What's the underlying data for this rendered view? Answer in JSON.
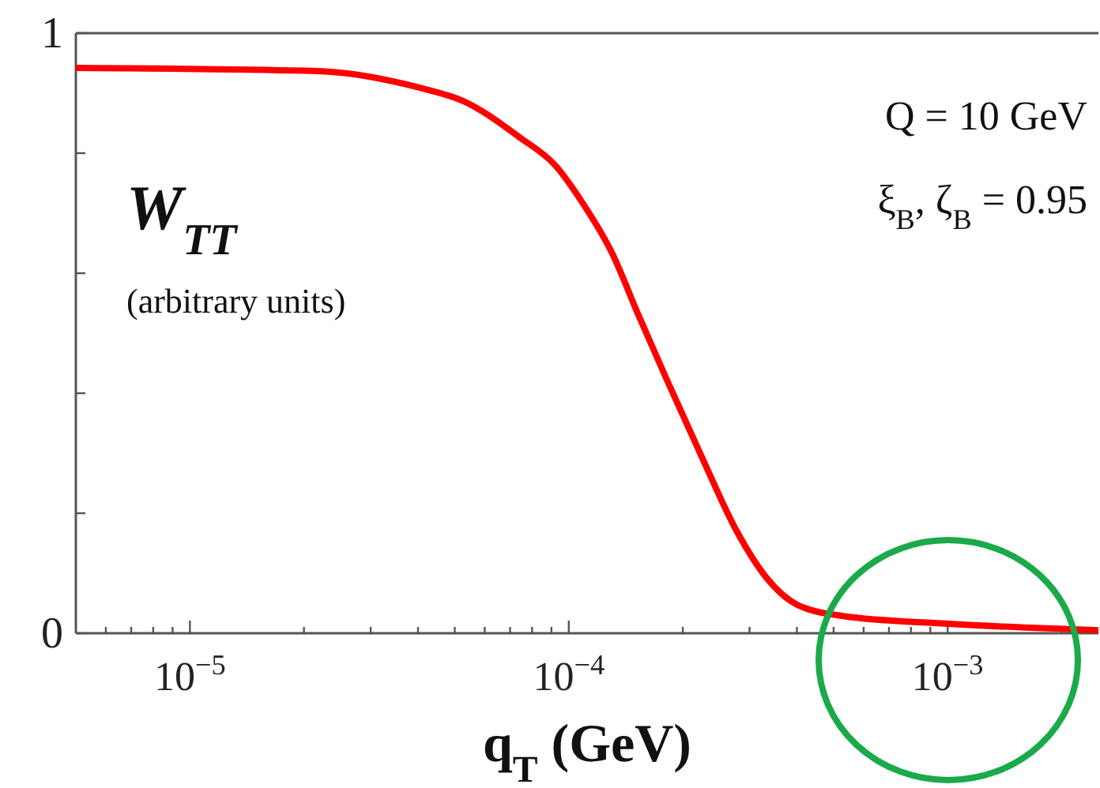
{
  "chart_data": {
    "type": "line",
    "xlabel": "q$_{T}$ (GeV)",
    "annotations": [
      "W$_{TT}$",
      "(arbitrary units)",
      "Q = 10 GeV",
      "ξ$_{B}$, ζ$_{B}$ = 0.95"
    ],
    "log": "x",
    "xlim": [
      5e-06,
      0.0025
    ],
    "ylim": [
      0,
      1
    ],
    "xticks": [
      {
        "value": 1e-05,
        "label": "10$^{−5}$"
      },
      {
        "value": 0.0001,
        "label": "10$^{−4}$"
      },
      {
        "value": 0.001,
        "label": "10$^{−3}$"
      },
      {
        "value": 6e-06,
        "label": null
      },
      {
        "value": 7e-06,
        "label": null
      },
      {
        "value": 8e-06,
        "label": null
      },
      {
        "value": 9e-06,
        "label": null
      },
      {
        "value": 2e-05,
        "label": null
      },
      {
        "value": 3e-05,
        "label": null
      },
      {
        "value": 4e-05,
        "label": null
      },
      {
        "value": 5e-05,
        "label": null
      },
      {
        "value": 6e-05,
        "label": null
      },
      {
        "value": 7e-05,
        "label": null
      },
      {
        "value": 8e-05,
        "label": null
      },
      {
        "value": 9e-05,
        "label": null
      },
      {
        "value": 0.0002,
        "label": null
      },
      {
        "value": 0.0003,
        "label": null
      },
      {
        "value": 0.0004,
        "label": null
      },
      {
        "value": 0.0005,
        "label": null
      },
      {
        "value": 0.0006,
        "label": null
      },
      {
        "value": 0.0007,
        "label": null
      },
      {
        "value": 0.0008,
        "label": null
      },
      {
        "value": 0.0009,
        "label": null
      },
      {
        "value": 0.002,
        "label": null
      }
    ],
    "yticks": [
      0,
      {
        "value": 0.2,
        "label": null
      },
      {
        "value": 0.4,
        "label": null
      },
      {
        "value": 0.6,
        "label": null
      },
      {
        "value": 0.8,
        "label": null
      },
      1
    ],
    "grid": false,
    "marker": "none",
    "line_style": "solid",
    "series": [
      {
        "color": "#ff0000",
        "x": [
          5e-06,
          2.15e-05,
          4.1e-05,
          5.26e-05,
          7.43e-05,
          9.2e-05,
          0.000109,
          0.00013,
          0.000153,
          0.000181,
          0.000224,
          0.000277,
          0.000335,
          0.000402,
          0.000526,
          0.00099,
          0.0025
        ],
        "values": [
          0.942,
          0.937,
          0.908,
          0.887,
          0.826,
          0.78,
          0.716,
          0.634,
          0.529,
          0.424,
          0.295,
          0.171,
          0.09,
          0.047,
          0.029,
          0.016,
          0.005
        ]
      }
    ]
  }
}
